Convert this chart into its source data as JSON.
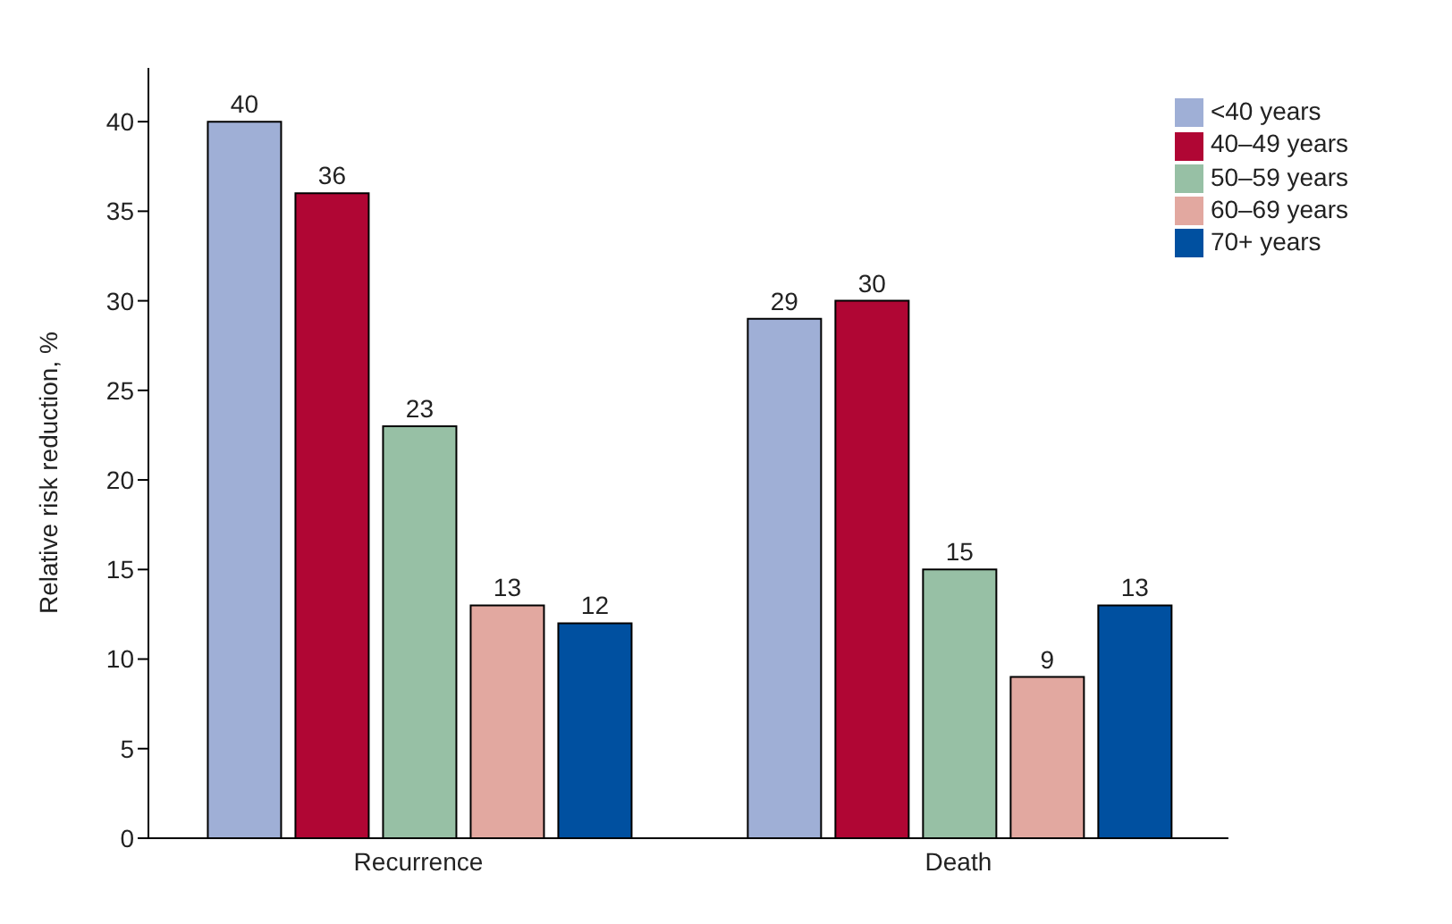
{
  "chart_data": {
    "type": "bar",
    "ylabel": "Relative risk reduction, %",
    "categories": [
      "Recurrence",
      "Death"
    ],
    "series": [
      {
        "name": "<40 years",
        "color": "#9fafd6",
        "values": [
          40,
          29
        ]
      },
      {
        "name": "40–49 years",
        "color": "#b00634",
        "values": [
          36,
          30
        ]
      },
      {
        "name": "50–59 years",
        "color": "#97c0a5",
        "values": [
          23,
          15
        ]
      },
      {
        "name": "60–69 years",
        "color": "#e2a8a0",
        "values": [
          13,
          9
        ]
      },
      {
        "name": "70+ years",
        "color": "#0050a0",
        "values": [
          12,
          13
        ]
      }
    ],
    "ylim": [
      0,
      43
    ],
    "yticks": [
      0,
      5,
      10,
      15,
      20,
      25,
      30,
      35,
      40
    ],
    "data_labels": true,
    "legend": "top right",
    "grid": false
  }
}
